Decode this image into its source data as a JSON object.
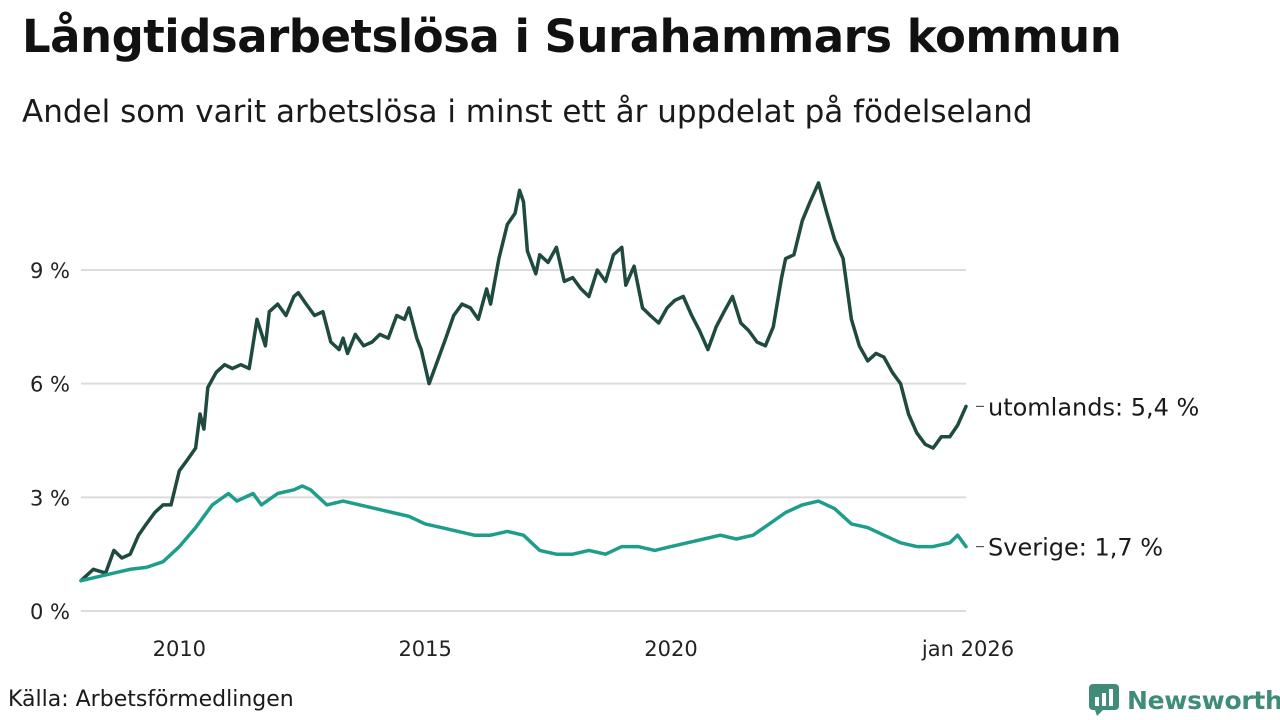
{
  "header": {
    "title": "Långtidsarbetslösa i Surahammars kommun",
    "subtitle": "Andel som varit arbetslösa i minst ett år uppdelat på födelseland"
  },
  "footer": {
    "source": "Källa: Arbetsförmedlingen",
    "brand": "Newsworthy",
    "brand_icon": "newsworthy-logo-icon",
    "brand_color": "#3f8c79"
  },
  "chart_data": {
    "type": "line",
    "title": "Långtidsarbetslösa i Surahammars kommun",
    "subtitle": "Andel som varit arbetslösa i minst ett år uppdelat på födelseland",
    "xlabel": "",
    "ylabel": "",
    "xlim": [
      2008.0,
      2026.0
    ],
    "ylim": [
      0,
      11.5
    ],
    "grid": true,
    "x_ticks": [
      {
        "value": 2010,
        "label": "2010"
      },
      {
        "value": 2015,
        "label": "2015"
      },
      {
        "value": 2020,
        "label": "2020"
      },
      {
        "value": 2026.0,
        "label": "jan 2026"
      }
    ],
    "y_ticks": [
      {
        "value": 0,
        "label": "0 %"
      },
      {
        "value": 3,
        "label": "3 %"
      },
      {
        "value": 6,
        "label": "6 %"
      },
      {
        "value": 9,
        "label": "9 %"
      }
    ],
    "series": [
      {
        "name": "utomlands",
        "label": "utomlands: 5,4 %",
        "color": "#1f4a40",
        "points": [
          [
            2008.0,
            0.8
          ],
          [
            2008.25,
            1.1
          ],
          [
            2008.5,
            1.0
          ],
          [
            2008.67,
            1.6
          ],
          [
            2008.83,
            1.4
          ],
          [
            2009.0,
            1.5
          ],
          [
            2009.17,
            2.0
          ],
          [
            2009.33,
            2.3
          ],
          [
            2009.5,
            2.6
          ],
          [
            2009.67,
            2.8
          ],
          [
            2009.83,
            2.8
          ],
          [
            2010.0,
            3.7
          ],
          [
            2010.17,
            4.0
          ],
          [
            2010.33,
            4.3
          ],
          [
            2010.42,
            5.2
          ],
          [
            2010.5,
            4.8
          ],
          [
            2010.58,
            5.9
          ],
          [
            2010.75,
            6.3
          ],
          [
            2010.92,
            6.5
          ],
          [
            2011.08,
            6.4
          ],
          [
            2011.25,
            6.5
          ],
          [
            2011.42,
            6.4
          ],
          [
            2011.58,
            7.7
          ],
          [
            2011.75,
            7.0
          ],
          [
            2011.83,
            7.9
          ],
          [
            2012.0,
            8.1
          ],
          [
            2012.17,
            7.8
          ],
          [
            2012.33,
            8.3
          ],
          [
            2012.42,
            8.4
          ],
          [
            2012.58,
            8.1
          ],
          [
            2012.75,
            7.8
          ],
          [
            2012.92,
            7.9
          ],
          [
            2013.08,
            7.1
          ],
          [
            2013.25,
            6.9
          ],
          [
            2013.33,
            7.2
          ],
          [
            2013.42,
            6.8
          ],
          [
            2013.58,
            7.3
          ],
          [
            2013.75,
            7.0
          ],
          [
            2013.92,
            7.1
          ],
          [
            2014.08,
            7.3
          ],
          [
            2014.25,
            7.2
          ],
          [
            2014.42,
            7.8
          ],
          [
            2014.58,
            7.7
          ],
          [
            2014.67,
            8.0
          ],
          [
            2014.83,
            7.2
          ],
          [
            2014.92,
            6.9
          ],
          [
            2015.08,
            6.0
          ],
          [
            2015.25,
            6.6
          ],
          [
            2015.42,
            7.2
          ],
          [
            2015.58,
            7.8
          ],
          [
            2015.75,
            8.1
          ],
          [
            2015.92,
            8.0
          ],
          [
            2016.08,
            7.7
          ],
          [
            2016.25,
            8.5
          ],
          [
            2016.33,
            8.1
          ],
          [
            2016.5,
            9.3
          ],
          [
            2016.67,
            10.2
          ],
          [
            2016.83,
            10.5
          ],
          [
            2016.92,
            11.1
          ],
          [
            2017.0,
            10.8
          ],
          [
            2017.08,
            9.5
          ],
          [
            2017.25,
            8.9
          ],
          [
            2017.33,
            9.4
          ],
          [
            2017.5,
            9.2
          ],
          [
            2017.67,
            9.6
          ],
          [
            2017.83,
            8.7
          ],
          [
            2018.0,
            8.8
          ],
          [
            2018.17,
            8.5
          ],
          [
            2018.33,
            8.3
          ],
          [
            2018.5,
            9.0
          ],
          [
            2018.67,
            8.7
          ],
          [
            2018.83,
            9.4
          ],
          [
            2019.0,
            9.6
          ],
          [
            2019.08,
            8.6
          ],
          [
            2019.25,
            9.1
          ],
          [
            2019.42,
            8.0
          ],
          [
            2019.58,
            7.8
          ],
          [
            2019.75,
            7.6
          ],
          [
            2019.92,
            8.0
          ],
          [
            2020.08,
            8.2
          ],
          [
            2020.25,
            8.3
          ],
          [
            2020.42,
            7.8
          ],
          [
            2020.58,
            7.4
          ],
          [
            2020.75,
            6.9
          ],
          [
            2020.92,
            7.5
          ],
          [
            2021.08,
            7.9
          ],
          [
            2021.25,
            8.3
          ],
          [
            2021.42,
            7.6
          ],
          [
            2021.58,
            7.4
          ],
          [
            2021.75,
            7.1
          ],
          [
            2021.92,
            7.0
          ],
          [
            2022.08,
            7.5
          ],
          [
            2022.25,
            8.8
          ],
          [
            2022.33,
            9.3
          ],
          [
            2022.5,
            9.4
          ],
          [
            2022.67,
            10.3
          ],
          [
            2022.83,
            10.8
          ],
          [
            2023.0,
            11.3
          ],
          [
            2023.17,
            10.5
          ],
          [
            2023.33,
            9.8
          ],
          [
            2023.5,
            9.3
          ],
          [
            2023.67,
            7.7
          ],
          [
            2023.83,
            7.0
          ],
          [
            2024.0,
            6.6
          ],
          [
            2024.17,
            6.8
          ],
          [
            2024.33,
            6.7
          ],
          [
            2024.5,
            6.3
          ],
          [
            2024.67,
            6.0
          ],
          [
            2024.83,
            5.2
          ],
          [
            2025.0,
            4.7
          ],
          [
            2025.17,
            4.4
          ],
          [
            2025.33,
            4.3
          ],
          [
            2025.5,
            4.6
          ],
          [
            2025.67,
            4.6
          ],
          [
            2025.83,
            4.9
          ],
          [
            2026.0,
            5.4
          ]
        ]
      },
      {
        "name": "Sverige",
        "label": "Sverige: 1,7 %",
        "color": "#1e9e8a",
        "points": [
          [
            2008.0,
            0.8
          ],
          [
            2008.33,
            0.9
          ],
          [
            2008.67,
            1.0
          ],
          [
            2009.0,
            1.1
          ],
          [
            2009.33,
            1.15
          ],
          [
            2009.67,
            1.3
          ],
          [
            2010.0,
            1.7
          ],
          [
            2010.33,
            2.2
          ],
          [
            2010.67,
            2.8
          ],
          [
            2011.0,
            3.1
          ],
          [
            2011.17,
            2.9
          ],
          [
            2011.5,
            3.1
          ],
          [
            2011.67,
            2.8
          ],
          [
            2012.0,
            3.1
          ],
          [
            2012.33,
            3.2
          ],
          [
            2012.5,
            3.3
          ],
          [
            2012.67,
            3.2
          ],
          [
            2013.0,
            2.8
          ],
          [
            2013.33,
            2.9
          ],
          [
            2013.67,
            2.8
          ],
          [
            2014.0,
            2.7
          ],
          [
            2014.33,
            2.6
          ],
          [
            2014.67,
            2.5
          ],
          [
            2015.0,
            2.3
          ],
          [
            2015.33,
            2.2
          ],
          [
            2015.67,
            2.1
          ],
          [
            2016.0,
            2.0
          ],
          [
            2016.33,
            2.0
          ],
          [
            2016.67,
            2.1
          ],
          [
            2017.0,
            2.0
          ],
          [
            2017.33,
            1.6
          ],
          [
            2017.67,
            1.5
          ],
          [
            2018.0,
            1.5
          ],
          [
            2018.33,
            1.6
          ],
          [
            2018.67,
            1.5
          ],
          [
            2019.0,
            1.7
          ],
          [
            2019.33,
            1.7
          ],
          [
            2019.67,
            1.6
          ],
          [
            2020.0,
            1.7
          ],
          [
            2020.33,
            1.8
          ],
          [
            2020.67,
            1.9
          ],
          [
            2021.0,
            2.0
          ],
          [
            2021.33,
            1.9
          ],
          [
            2021.67,
            2.0
          ],
          [
            2022.0,
            2.3
          ],
          [
            2022.33,
            2.6
          ],
          [
            2022.67,
            2.8
          ],
          [
            2023.0,
            2.9
          ],
          [
            2023.33,
            2.7
          ],
          [
            2023.67,
            2.3
          ],
          [
            2024.0,
            2.2
          ],
          [
            2024.33,
            2.0
          ],
          [
            2024.67,
            1.8
          ],
          [
            2025.0,
            1.7
          ],
          [
            2025.33,
            1.7
          ],
          [
            2025.67,
            1.8
          ],
          [
            2025.83,
            2.0
          ],
          [
            2026.0,
            1.7
          ]
        ]
      }
    ]
  }
}
